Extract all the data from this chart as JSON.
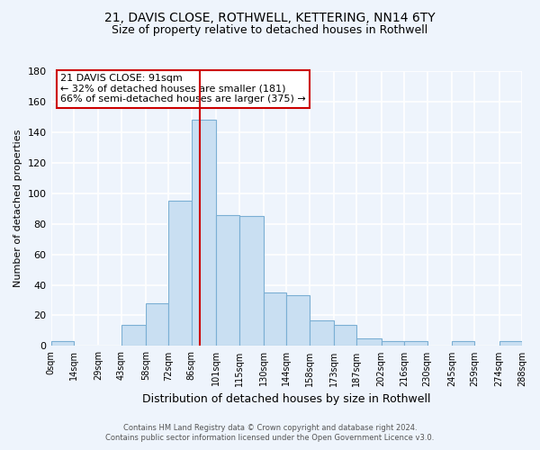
{
  "title1": "21, DAVIS CLOSE, ROTHWELL, KETTERING, NN14 6TY",
  "title2": "Size of property relative to detached houses in Rothwell",
  "xlabel": "Distribution of detached houses by size in Rothwell",
  "ylabel": "Number of detached properties",
  "bin_edges": [
    0,
    14,
    29,
    43,
    58,
    72,
    86,
    101,
    115,
    130,
    144,
    158,
    173,
    187,
    202,
    216,
    230,
    245,
    259,
    274,
    288
  ],
  "counts": [
    3,
    0,
    0,
    14,
    28,
    95,
    148,
    86,
    85,
    35,
    33,
    17,
    14,
    5,
    3,
    3,
    0,
    3,
    0,
    3
  ],
  "tick_labels": [
    "0sqm",
    "14sqm",
    "29sqm",
    "43sqm",
    "58sqm",
    "72sqm",
    "86sqm",
    "101sqm",
    "115sqm",
    "130sqm",
    "144sqm",
    "158sqm",
    "173sqm",
    "187sqm",
    "202sqm",
    "216sqm",
    "230sqm",
    "245sqm",
    "259sqm",
    "274sqm",
    "288sqm"
  ],
  "bar_color": "#c9dff2",
  "bar_edge_color": "#7bafd4",
  "vline_x": 91,
  "vline_color": "#cc0000",
  "annotation_line1": "21 DAVIS CLOSE: 91sqm",
  "annotation_line2": "← 32% of detached houses are smaller (181)",
  "annotation_line3": "66% of semi-detached houses are larger (375) →",
  "annotation_box_edge_color": "#cc0000",
  "ylim": [
    0,
    180
  ],
  "yticks": [
    0,
    20,
    40,
    60,
    80,
    100,
    120,
    140,
    160,
    180
  ],
  "footnote1": "Contains HM Land Registry data © Crown copyright and database right 2024.",
  "footnote2": "Contains public sector information licensed under the Open Government Licence v3.0.",
  "bg_color": "#eef4fc",
  "grid_color": "#ffffff",
  "title1_fontsize": 10,
  "title2_fontsize": 9
}
